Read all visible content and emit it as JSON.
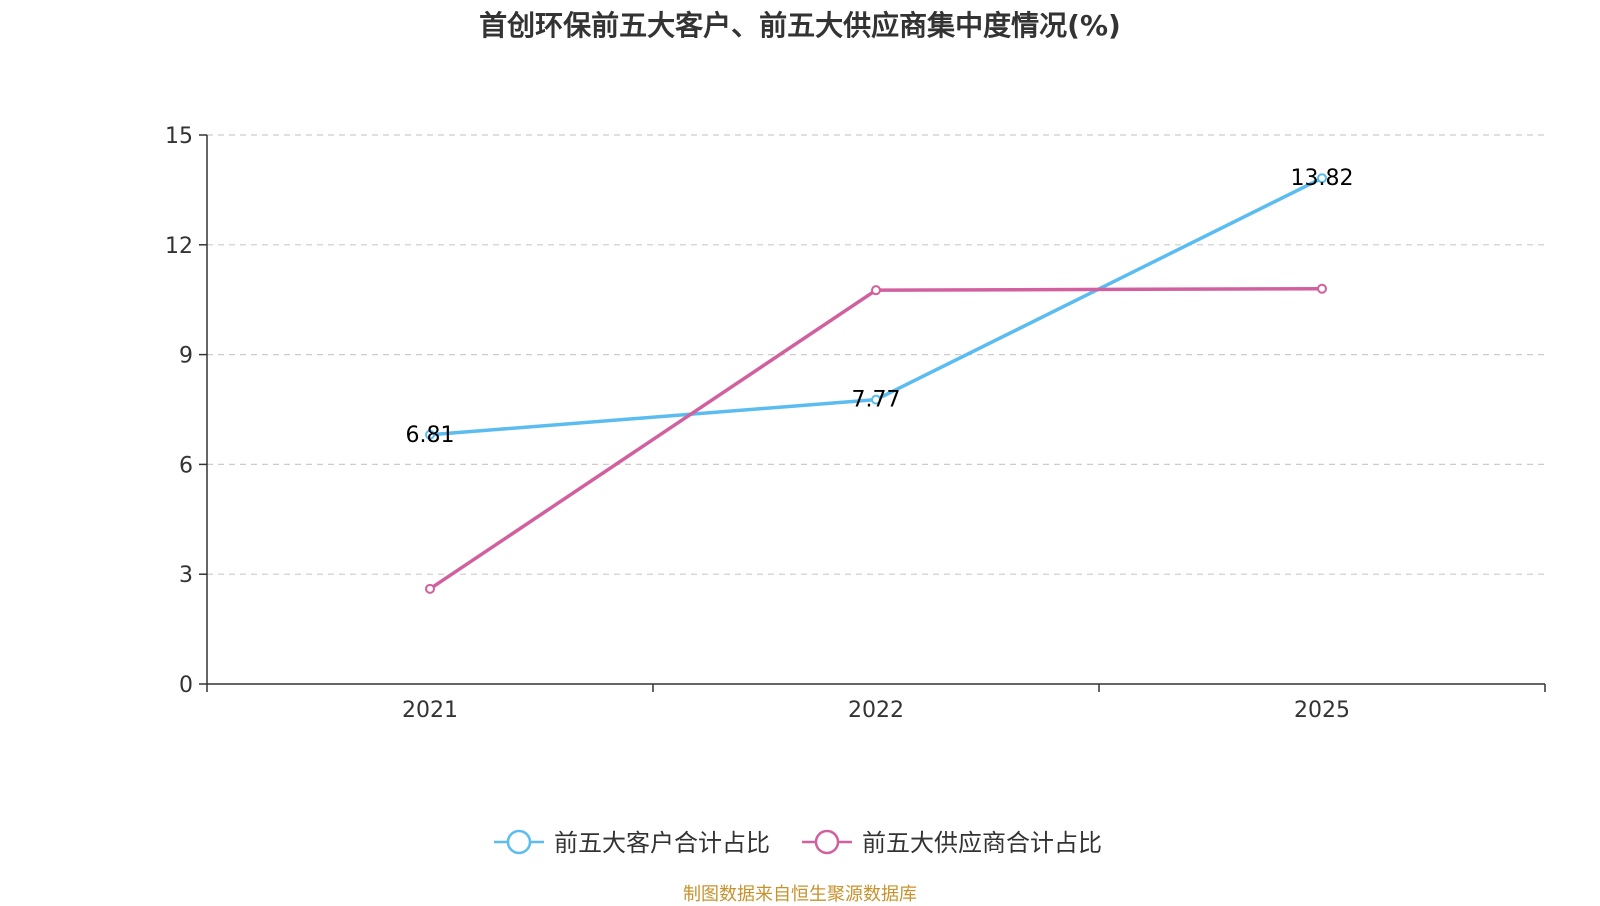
{
  "chart_data": {
    "type": "line",
    "title": "首创环保前五大客户、前五大供应商集中度情况(%)",
    "categories": [
      "2021",
      "2022",
      "2025"
    ],
    "ylim": [
      0,
      15
    ],
    "yticks": [
      0,
      3,
      6,
      9,
      12,
      15
    ],
    "grid": true,
    "legend_position": "bottom",
    "series": [
      {
        "name": "前五大客户合计占比",
        "color": "#5bbcf0",
        "values": [
          6.81,
          7.77,
          13.82
        ],
        "labels": [
          "6.81",
          "7.77",
          "13.82"
        ]
      },
      {
        "name": "前五大供应商合计占比",
        "color": "#d2609f",
        "values": [
          2.6,
          10.76,
          10.8
        ],
        "labels": []
      }
    ]
  },
  "source": "制图数据来自恒生聚源数据库"
}
